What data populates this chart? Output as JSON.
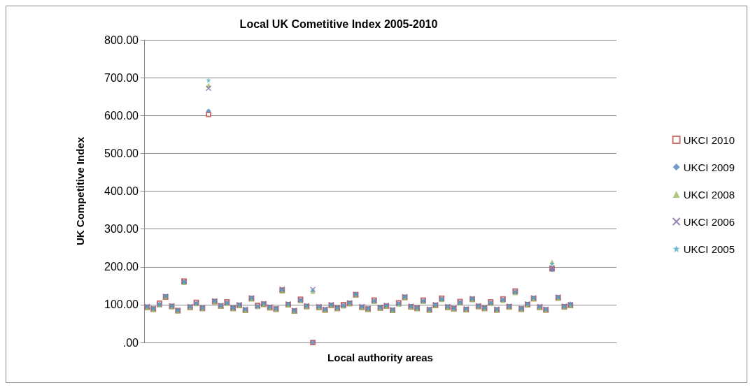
{
  "chart_data": {
    "type": "scatter",
    "title": "Local UK Cometitive Index 2005-2010",
    "xlabel": "Local authority areas",
    "ylabel": "UK Competitive Index",
    "categories": [
      null,
      null,
      null,
      null,
      null,
      null,
      null,
      null,
      null,
      null,
      null,
      null,
      null,
      null,
      null,
      null,
      null,
      null,
      null,
      null,
      null,
      null,
      null,
      null,
      null,
      null,
      null,
      null,
      null,
      null,
      null,
      null,
      null,
      null,
      null,
      null,
      null,
      null,
      null,
      null,
      null,
      null,
      null,
      null,
      null,
      null,
      null,
      null,
      null,
      null,
      null,
      null,
      null,
      null,
      null,
      null,
      null,
      null,
      null,
      null,
      null,
      null,
      null,
      null,
      null,
      null,
      null,
      null,
      null,
      null,
      null,
      null,
      null,
      null,
      null,
      null,
      null
    ],
    "series": [
      {
        "name": "UKCI 2010",
        "color": "#c0504d",
        "marker": "square",
        "values": [
          93,
          88,
          104,
          120,
          95,
          84,
          162,
          93,
          106,
          90,
          603,
          108,
          96,
          107,
          90,
          98,
          85,
          116,
          98,
          101,
          92,
          88,
          138,
          100,
          83,
          114,
          95,
          0,
          93,
          86,
          98,
          90,
          100,
          103,
          126,
          93,
          88,
          112,
          91,
          96,
          85,
          105,
          119,
          94,
          90,
          112,
          86,
          98,
          117,
          93,
          89,
          108,
          87,
          114,
          95,
          90,
          107,
          86,
          115,
          94,
          136,
          88,
          100,
          116,
          93,
          86,
          195,
          118,
          94,
          98,
          null,
          null,
          null,
          null,
          null,
          null,
          null
        ]
      },
      {
        "name": "UKCI 2009",
        "color": "#4f81bd",
        "marker": "diamond",
        "values": [
          94,
          89,
          101,
          122,
          96,
          85,
          159,
          94,
          103,
          91,
          612,
          109,
          97,
          104,
          91,
          99,
          87,
          117,
          95,
          102,
          93,
          89,
          139,
          101,
          84,
          111,
          96,
          0,
          94,
          87,
          99,
          91,
          97,
          104,
          127,
          94,
          89,
          109,
          92,
          97,
          86,
          102,
          120,
          95,
          91,
          109,
          87,
          99,
          114,
          94,
          90,
          105,
          88,
          115,
          96,
          91,
          104,
          87,
          112,
          95,
          133,
          89,
          101,
          117,
          94,
          87,
          192,
          119,
          95,
          102,
          null,
          null,
          null,
          null,
          null,
          null,
          null
        ]
      },
      {
        "name": "UKCI 2008",
        "color": "#9bbb59",
        "marker": "triangle",
        "values": [
          92,
          87,
          99,
          121,
          94,
          83,
          158,
          92,
          102,
          89,
          680,
          107,
          95,
          103,
          89,
          97,
          84,
          115,
          94,
          100,
          91,
          87,
          136,
          99,
          82,
          110,
          94,
          135,
          92,
          85,
          97,
          89,
          96,
          102,
          125,
          92,
          87,
          108,
          90,
          95,
          84,
          101,
          118,
          93,
          89,
          108,
          85,
          97,
          113,
          92,
          88,
          104,
          86,
          113,
          94,
          89,
          103,
          85,
          111,
          93,
          131,
          87,
          99,
          115,
          92,
          85,
          213,
          117,
          93,
          97,
          null,
          null,
          null,
          null,
          null,
          null,
          null
        ]
      },
      {
        "name": "UKCI 2006",
        "color": "#8064a2",
        "marker": "cross",
        "values": [
          95,
          90,
          100,
          122,
          97,
          85,
          161,
          95,
          104,
          91,
          672,
          110,
          98,
          105,
          92,
          100,
          88,
          118,
          96,
          103,
          94,
          90,
          141,
          102,
          85,
          112,
          97,
          140,
          95,
          88,
          100,
          92,
          98,
          105,
          127,
          95,
          90,
          110,
          93,
          98,
          87,
          103,
          121,
          96,
          92,
          110,
          88,
          100,
          115,
          95,
          91,
          106,
          89,
          116,
          97,
          92,
          105,
          88,
          113,
          96,
          134,
          90,
          102,
          118,
          95,
          88,
          197,
          120,
          96,
          100,
          null,
          null,
          null,
          null,
          null,
          null,
          null
        ]
      },
      {
        "name": "UKCI 2005",
        "color": "#4bacc6",
        "marker": "star",
        "values": [
          95,
          90,
          102,
          123,
          97,
          86,
          160,
          95,
          104,
          92,
          693,
          110,
          98,
          105,
          92,
          100,
          88,
          118,
          96,
          103,
          94,
          90,
          140,
          102,
          85,
          112,
          97,
          138,
          95,
          88,
          100,
          92,
          98,
          105,
          128,
          95,
          90,
          110,
          93,
          98,
          87,
          103,
          121,
          96,
          92,
          110,
          88,
          100,
          115,
          95,
          91,
          106,
          89,
          116,
          97,
          92,
          105,
          88,
          113,
          96,
          134,
          90,
          102,
          118,
          95,
          88,
          208,
          120,
          96,
          100,
          null,
          null,
          null,
          null,
          null,
          null,
          null
        ]
      }
    ],
    "ylim": [
      0,
      800
    ],
    "yticks": [
      {
        "value": 0,
        "label": ".00"
      },
      {
        "value": 100,
        "label": "100.00"
      },
      {
        "value": 200,
        "label": "200.00"
      },
      {
        "value": 300,
        "label": "300.00"
      },
      {
        "value": 400,
        "label": "400.00"
      },
      {
        "value": 500,
        "label": "500.00"
      },
      {
        "value": 600,
        "label": "600.00"
      },
      {
        "value": 700,
        "label": "700.00"
      },
      {
        "value": 800,
        "label": "800.00"
      }
    ],
    "grid": "y",
    "legend": "right",
    "tick_labels": "y"
  }
}
